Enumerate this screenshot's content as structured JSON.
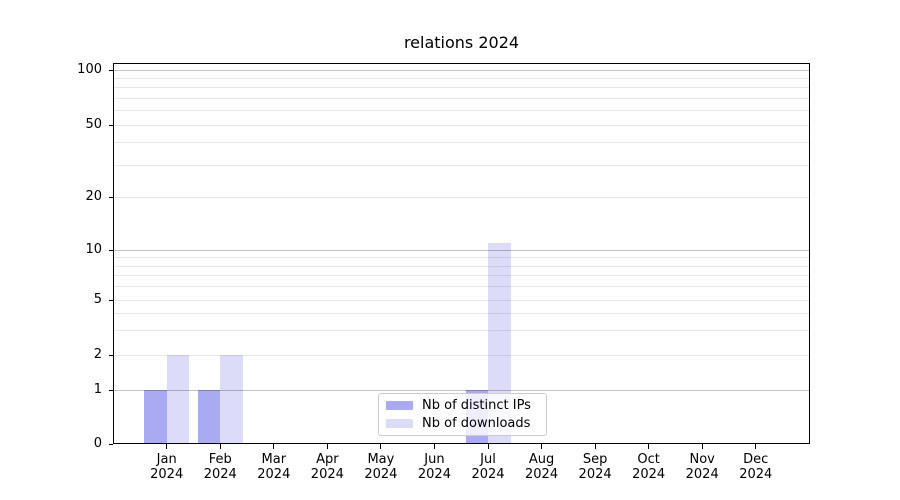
{
  "title": "relations 2024",
  "colors": {
    "ips_bar": "#aaaaf2",
    "downloads_bar": "#dcdcf8",
    "bar_base": "#8888ee",
    "grid_minor": "rgba(0,0,0,0.09)",
    "grid_major": "rgba(0,0,0,0.24)",
    "axis": "#000000",
    "legend_border": "#cccccc"
  },
  "legend": {
    "items": [
      {
        "label": "Nb of distinct IPs",
        "color_key": "ips_bar"
      },
      {
        "label": "Nb of downloads",
        "color_key": "downloads_bar"
      }
    ]
  },
  "chart_data": {
    "type": "bar",
    "title": "relations 2024",
    "categories": [
      "Jan",
      "Feb",
      "Mar",
      "Apr",
      "May",
      "Jun",
      "Jul",
      "Aug",
      "Sep",
      "Oct",
      "Nov",
      "Dec"
    ],
    "year": "2024",
    "series": [
      {
        "name": "Nb of distinct IPs",
        "values": [
          1,
          1,
          0,
          0,
          0,
          0,
          1,
          0,
          0,
          0,
          0,
          0
        ]
      },
      {
        "name": "Nb of downloads",
        "values": [
          2,
          2,
          0,
          0,
          0,
          0,
          11,
          0,
          0,
          0,
          0,
          0
        ]
      }
    ],
    "yscale": "log",
    "y_tick_values": [
      0,
      1,
      2,
      5,
      10,
      20,
      50,
      100
    ],
    "y_minor_gridline_values": [
      3,
      4,
      6,
      7,
      8,
      9,
      30,
      40,
      60,
      70,
      80,
      90
    ],
    "y_decade_values": [
      1,
      10,
      100
    ],
    "ylim": [
      0,
      110
    ],
    "grid": true,
    "legend_position": "lower center"
  }
}
